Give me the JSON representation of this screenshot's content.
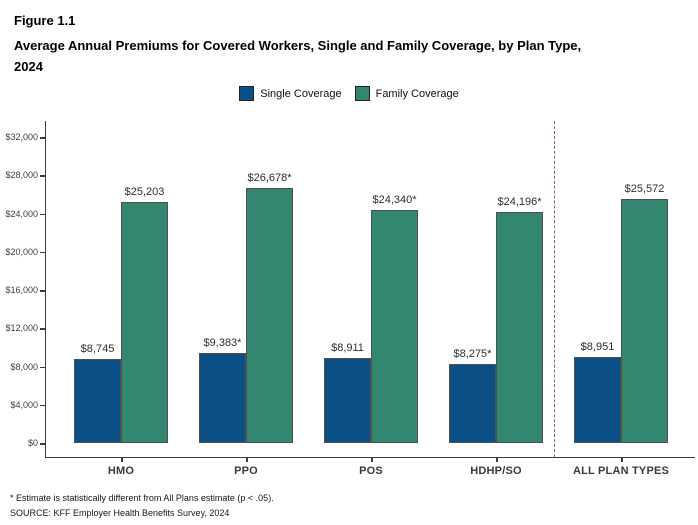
{
  "figure": {
    "label": "Figure 1.1",
    "title_lines": [
      "Average Annual Premiums for Covered Workers, Single and Family Coverage, by Plan Type,",
      "2024"
    ]
  },
  "legend": [
    {
      "label": "Single Coverage",
      "color": "#0b4f87"
    },
    {
      "label": "Family Coverage",
      "color": "#338770"
    }
  ],
  "chart_data": {
    "type": "bar",
    "title": "Average Annual Premiums for Covered Workers, Single and Family Coverage, by Plan Type, 2024",
    "categories": [
      "HMO",
      "PPO",
      "POS",
      "HDHP/SO",
      "ALL PLAN TYPES"
    ],
    "series": [
      {
        "name": "Single Coverage",
        "color": "#0b4f87",
        "values": [
          8745,
          9383,
          8911,
          8275,
          8951
        ],
        "labels": [
          "$8,745",
          "$9,383*",
          "$8,911",
          "$8,275*",
          "$8,951"
        ]
      },
      {
        "name": "Family Coverage",
        "color": "#338770",
        "values": [
          25203,
          26678,
          24340,
          24196,
          25572
        ],
        "labels": [
          "$25,203",
          "$26,678*",
          "$24,340*",
          "$24,196*",
          "$25,572"
        ]
      }
    ],
    "y_axis": {
      "min": 0,
      "max": 32000,
      "ticks": [
        0,
        4000,
        8000,
        12000,
        16000,
        20000,
        24000,
        28000,
        32000
      ],
      "tick_labels": [
        "$0",
        "$4,000",
        "$8,000",
        "$12,000",
        "$16,000",
        "$20,000",
        "$24,000",
        "$28,000",
        "$32,000"
      ]
    },
    "separator": {
      "between": [
        "HDHP/SO",
        "ALL PLAN TYPES"
      ],
      "color": "#9b4f9e",
      "style": "dashed"
    },
    "grid": false,
    "legend_position": "top"
  },
  "footnotes": [
    "* Estimate is statistically different from All Plans estimate (p < .05).",
    "SOURCE: KFF Employer Health Benefits Survey, 2024"
  ]
}
